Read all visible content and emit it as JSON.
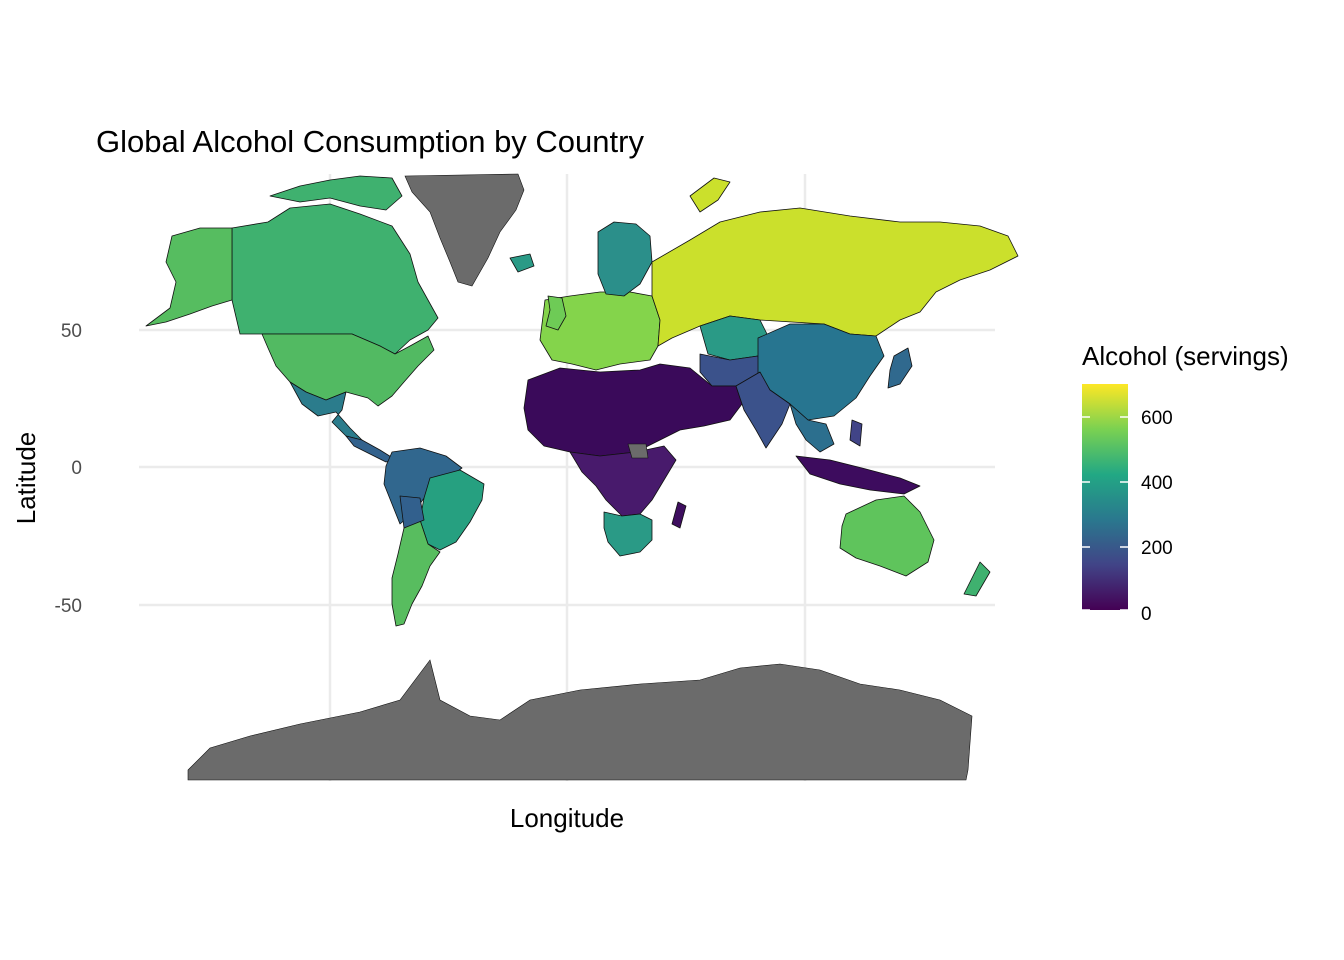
{
  "title": "Global Alcohol Consumption by Country",
  "x_axis": {
    "label": "Longitude"
  },
  "y_axis": {
    "label": "Latitude",
    "ticks": [
      "50",
      "0",
      "-50"
    ]
  },
  "legend": {
    "title": "Alcohol (servings)",
    "ticks": [
      "600",
      "400",
      "200",
      "0"
    ],
    "placement": "right"
  },
  "colors": {
    "na_land": "#6b6b6b",
    "gradient": [
      "#fde725",
      "#7ad151",
      "#22a884",
      "#2a788e",
      "#414487",
      "#440154"
    ]
  },
  "chart_data": {
    "type": "choropleth",
    "title": "Global Alcohol Consumption by Country",
    "xlabel": "Longitude",
    "ylabel": "Latitude",
    "y_ticks": [
      50,
      0,
      -50
    ],
    "x_gridlines": [
      -100,
      0,
      100
    ],
    "legend_title": "Alcohol (servings)",
    "color_range": [
      0,
      700
    ],
    "color_scale": "viridis",
    "legend_ticks": [
      0,
      200,
      400,
      600
    ],
    "grid": true,
    "approx_values": [
      {
        "region": "Russia",
        "value": 650
      },
      {
        "region": "Canada",
        "value": 450
      },
      {
        "region": "Alaska / USA",
        "value": 470
      },
      {
        "region": "Australia",
        "value": 550
      },
      {
        "region": "Europe",
        "value": 550
      },
      {
        "region": "Kazakhstan",
        "value": 380
      },
      {
        "region": "China",
        "value": 280
      },
      {
        "region": "Brazil",
        "value": 400
      },
      {
        "region": "South Africa",
        "value": 390
      },
      {
        "region": "Argentina",
        "value": 470
      },
      {
        "region": "India",
        "value": 150
      },
      {
        "region": "North Africa / Middle East",
        "value": 20
      },
      {
        "region": "Central Africa",
        "value": 60
      },
      {
        "region": "Southeast Asia",
        "value": 80
      },
      {
        "region": "Mexico",
        "value": 280
      },
      {
        "region": "New Zealand",
        "value": 450
      },
      {
        "region": "Scandinavia",
        "value": 330
      }
    ]
  }
}
